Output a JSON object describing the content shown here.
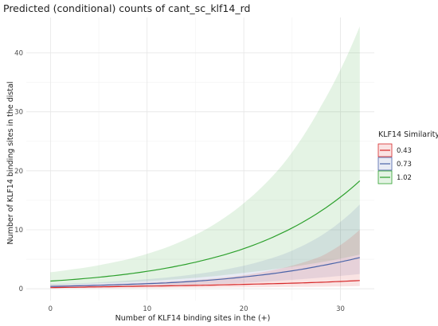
{
  "chart_data": {
    "type": "line",
    "title": "Predicted (conditional) counts of cant_sc_klf14_rd",
    "xlabel": "Number of KLF14 binding sites in the (+)",
    "ylabel": "Number of KLF14 binding sites in the distal",
    "xlim": [
      -2.5,
      33.5
    ],
    "ylim": [
      -2,
      46
    ],
    "x_ticks": [
      0,
      10,
      20,
      30
    ],
    "y_ticks": [
      0,
      10,
      20,
      30,
      40
    ],
    "grid": true,
    "legend": {
      "title": "KLF14 Similarity",
      "position": "right"
    },
    "x": [
      0,
      4,
      8,
      12,
      16,
      20,
      24,
      28,
      32
    ],
    "series": [
      {
        "name": "0.43",
        "color": "#d62728",
        "values": [
          0.2,
          0.3,
          0.4,
          0.5,
          0.6,
          0.75,
          0.9,
          1.1,
          1.4
        ],
        "lower": [
          0.05,
          0.08,
          0.1,
          0.15,
          0.2,
          0.25,
          0.3,
          0.35,
          0.45
        ],
        "upper": [
          0.6,
          0.7,
          0.9,
          1.2,
          1.6,
          2.3,
          3.5,
          5.5,
          10.0
        ]
      },
      {
        "name": "0.73",
        "color": "#4a63a8",
        "values": [
          0.4,
          0.55,
          0.75,
          1.0,
          1.4,
          2.0,
          2.8,
          3.9,
          5.3
        ],
        "lower": [
          0.2,
          0.3,
          0.4,
          0.55,
          0.75,
          1.0,
          1.4,
          1.9,
          2.5
        ],
        "upper": [
          0.8,
          1.0,
          1.4,
          1.9,
          2.7,
          3.9,
          5.8,
          9.0,
          14.3
        ]
      },
      {
        "name": "1.02",
        "color": "#2ca02c",
        "values": [
          1.3,
          1.8,
          2.5,
          3.5,
          4.9,
          6.8,
          9.5,
          13.2,
          18.3
        ],
        "lower": [
          0.6,
          0.85,
          1.1,
          1.5,
          2.0,
          2.7,
          3.5,
          4.5,
          5.8
        ],
        "upper": [
          2.8,
          3.7,
          5.0,
          7.0,
          10.0,
          14.5,
          21.0,
          31.0,
          44.5
        ]
      }
    ]
  }
}
